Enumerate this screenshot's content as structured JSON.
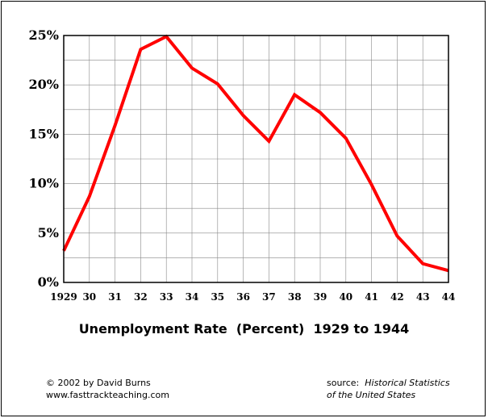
{
  "chart_data": {
    "type": "line",
    "title": "Unemployment Rate  (Percent)  1929 to 1944",
    "xlabel": "",
    "ylabel": "",
    "x": [
      "1929",
      "30",
      "31",
      "32",
      "33",
      "34",
      "35",
      "36",
      "37",
      "38",
      "39",
      "40",
      "41",
      "42",
      "43",
      "44"
    ],
    "series": [
      {
        "values": [
          3.2,
          8.7,
          15.9,
          23.6,
          24.9,
          21.7,
          20.1,
          16.9,
          14.3,
          19.0,
          17.2,
          14.6,
          9.9,
          4.7,
          1.9,
          1.2
        ]
      }
    ],
    "ylim": [
      0,
      25
    ],
    "yticks": [
      0,
      5,
      10,
      15,
      20,
      25
    ],
    "ytick_labels": [
      "0%",
      "5%",
      "10%",
      "15%",
      "20%",
      "25%"
    ],
    "minor_grid_step": 2.5,
    "line_color": "#ff0000",
    "grid": true
  },
  "footer": {
    "copyright": "© 2002 by David Burns",
    "website": "www.fasttrackteaching.com",
    "source_label": "source:",
    "source_title_line1": "Historical Statistics",
    "source_title_line2": "of the United States"
  }
}
